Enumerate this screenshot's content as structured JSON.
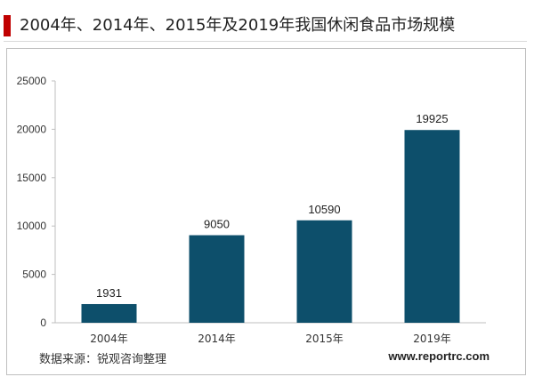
{
  "header": {
    "title": "2004年、2014年、2015年及2019年我国休闲食品市场规模"
  },
  "chart_data": {
    "type": "bar",
    "title": "2004年、2014年、2015年及2019年我国休闲食品市场规模",
    "categories": [
      "2004年",
      "2014年",
      "2015年",
      "2019年"
    ],
    "values": [
      1931,
      9050,
      10590,
      19925
    ],
    "data_labels": [
      "1931",
      "9050",
      "10590",
      "19925"
    ],
    "yticks": [
      "0",
      "5000",
      "10000",
      "15000",
      "20000",
      "25000"
    ],
    "ylim": [
      0,
      25000
    ],
    "xlabel": "",
    "ylabel": "",
    "grid": false,
    "legend": "none",
    "bar_color": "#0d4f6b"
  },
  "footer": {
    "source": "数据来源：锐观咨询整理",
    "site": "www.reportrc.com"
  },
  "colors": {
    "accent": "#c00000",
    "bar": "#0d4f6b"
  }
}
